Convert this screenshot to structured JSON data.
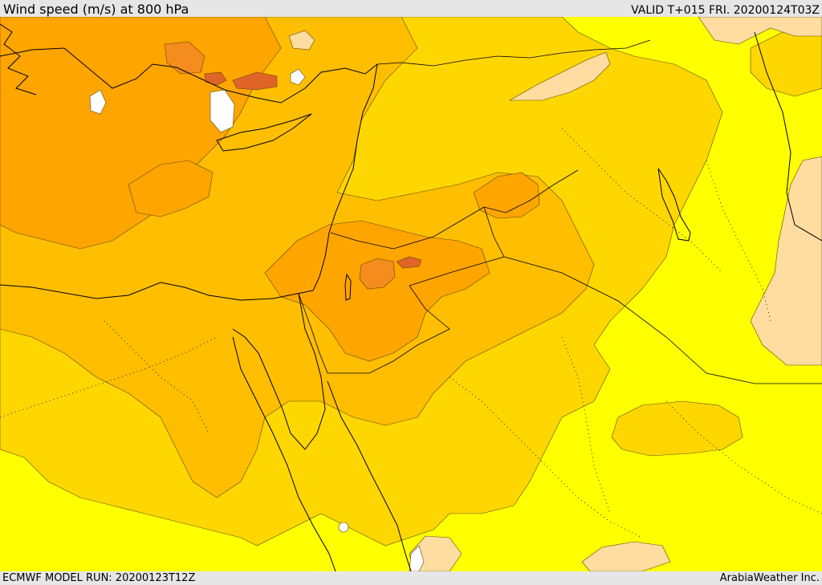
{
  "header": {
    "title": "Wind speed (m/s) at 800 hPa",
    "valid_time": "VALID T+015 FRI. 20200124T03Z"
  },
  "footer": {
    "model_run": "ECMWF MODEL RUN: 20200123T12Z",
    "credit": "ArabiaWeather Inc."
  },
  "palette": {
    "yellow": "#ffff00",
    "gold": "#ffd700",
    "amber": "#ffbe00",
    "orange": "#ffa500",
    "dark_orange": "#f58c1e",
    "red_orange": "#e06428",
    "pale_tan": "#ffdca0",
    "white": "#ffffff"
  }
}
